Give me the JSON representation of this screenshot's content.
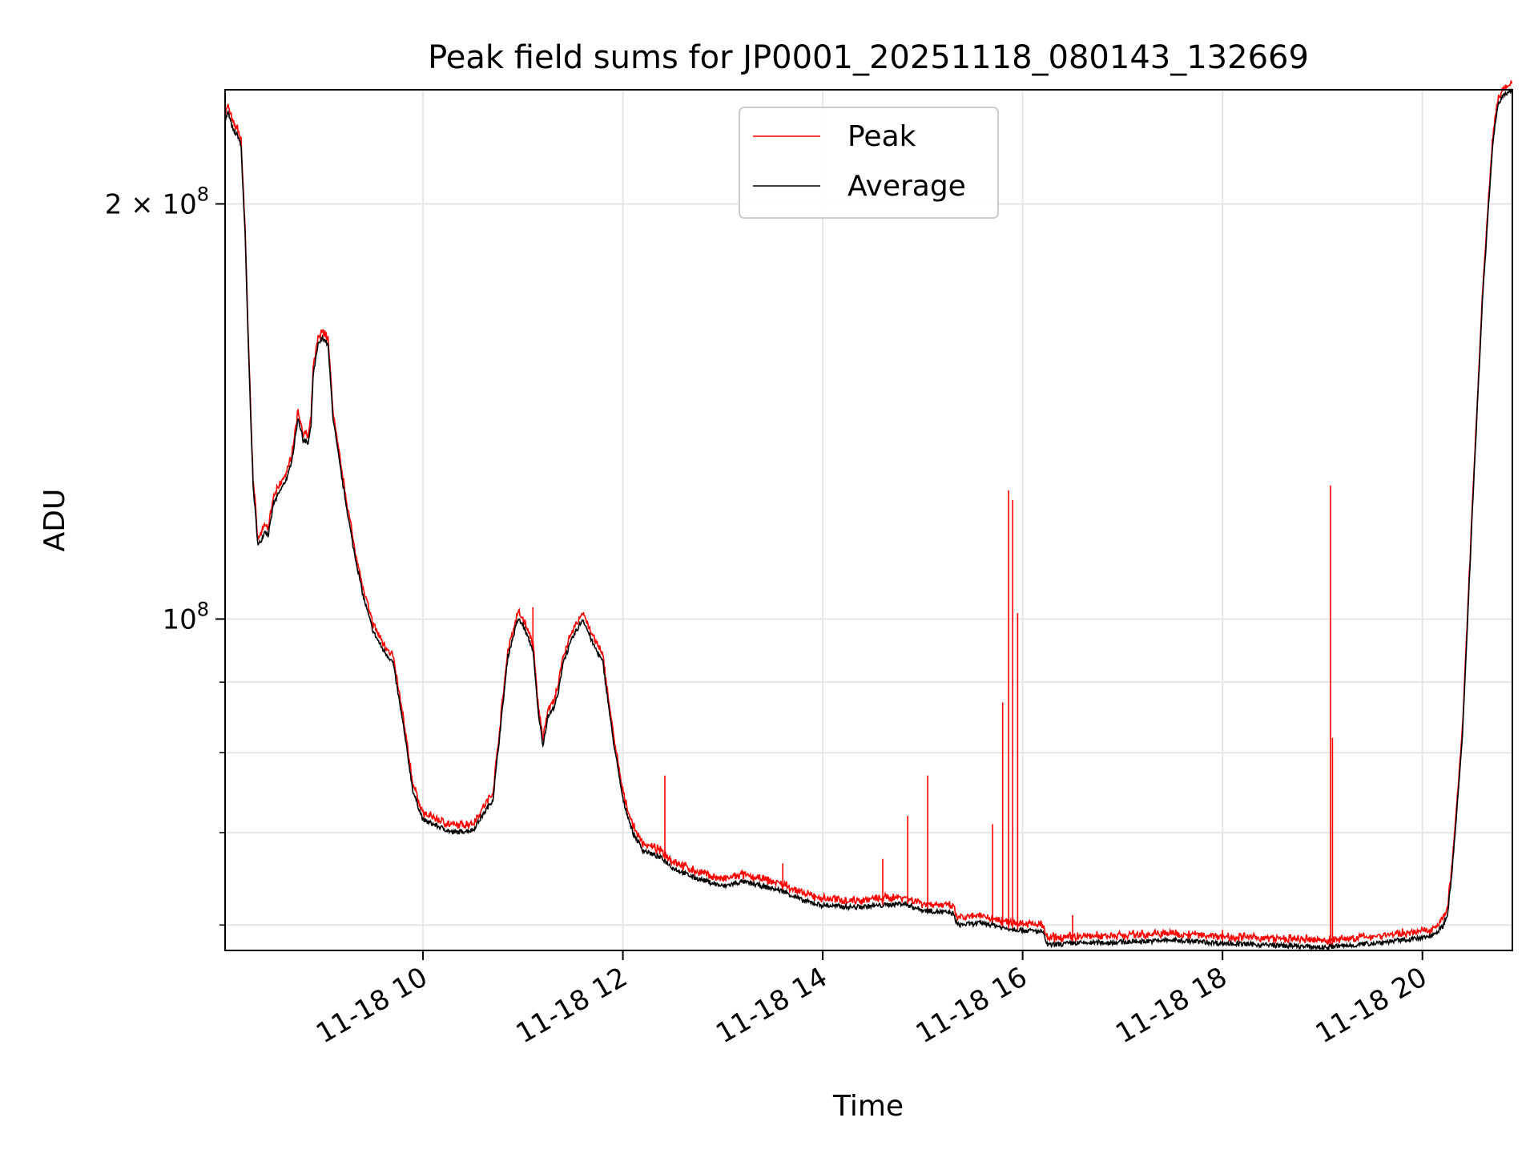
{
  "chart_data": {
    "type": "line",
    "title": "Peak field sums for JP0001_20251118_080143_132669",
    "xlabel": "Time",
    "ylabel": "ADU",
    "yscale": "log",
    "xlim": [
      8.02,
      20.9
    ],
    "ylim": [
      57500000,
      242000000
    ],
    "grid": true,
    "legend_position": "top-center",
    "x_ticks": [
      {
        "value": 10,
        "label": "11-18 10"
      },
      {
        "value": 12,
        "label": "11-18 12"
      },
      {
        "value": 14,
        "label": "11-18 14"
      },
      {
        "value": 16,
        "label": "11-18 16"
      },
      {
        "value": 18,
        "label": "11-18 18"
      },
      {
        "value": 20,
        "label": "11-18 20"
      }
    ],
    "y_ticks_major": [
      {
        "value": 100000000,
        "base": "10",
        "exp": "8",
        "coef": ""
      },
      {
        "value": 200000000,
        "base": "10",
        "exp": "8",
        "coef": "2 × "
      }
    ],
    "y_ticks_minor": [
      60000000,
      70000000,
      80000000,
      90000000
    ],
    "series": [
      {
        "name": "Peak",
        "color": "#ff0000",
        "spikes": [
          {
            "x": 11.1,
            "y": 102000000
          },
          {
            "x": 12.42,
            "y": 77000000
          },
          {
            "x": 13.6,
            "y": 66500000
          },
          {
            "x": 14.6,
            "y": 67000000
          },
          {
            "x": 14.85,
            "y": 72000000
          },
          {
            "x": 15.05,
            "y": 77000000
          },
          {
            "x": 15.7,
            "y": 71000000
          },
          {
            "x": 15.8,
            "y": 87000000
          },
          {
            "x": 15.86,
            "y": 124000000
          },
          {
            "x": 15.9,
            "y": 122000000
          },
          {
            "x": 15.95,
            "y": 101000000
          },
          {
            "x": 16.5,
            "y": 61000000
          },
          {
            "x": 18.0,
            "y": 59500000
          },
          {
            "x": 19.08,
            "y": 125000000
          },
          {
            "x": 19.1,
            "y": 82000000
          }
        ]
      },
      {
        "name": "Average",
        "color": "#000000",
        "x": [
          8.02,
          8.05,
          8.1,
          8.15,
          8.18,
          8.22,
          8.25,
          8.3,
          8.35,
          8.38,
          8.42,
          8.45,
          8.48,
          8.5,
          8.55,
          8.6,
          8.65,
          8.7,
          8.75,
          8.8,
          8.85,
          8.88,
          8.9,
          8.95,
          9.0,
          9.05,
          9.1,
          9.15,
          9.2,
          9.3,
          9.4,
          9.5,
          9.6,
          9.7,
          9.8,
          9.9,
          10.0,
          10.1,
          10.2,
          10.3,
          10.5,
          10.7,
          10.85,
          10.95,
          11.0,
          11.1,
          11.15,
          11.2,
          11.25,
          11.3,
          11.35,
          11.4,
          11.5,
          11.6,
          11.7,
          11.8,
          11.9,
          12.0,
          12.1,
          12.2,
          12.3,
          12.4,
          12.5,
          12.7,
          13.0,
          13.2,
          13.4,
          13.6,
          13.8,
          14.0,
          14.3,
          14.6,
          14.8,
          15.0,
          15.3,
          15.35,
          15.6,
          15.75,
          15.8,
          16.0,
          16.2,
          16.25,
          16.5,
          17.0,
          17.5,
          18.0,
          18.5,
          19.0,
          19.3,
          19.6,
          20.0,
          20.1,
          20.2,
          20.25,
          20.3,
          20.4,
          20.5,
          20.6,
          20.7,
          20.75,
          20.8,
          20.9
        ],
        "y": [
          230000000,
          233000000,
          226000000,
          224000000,
          220000000,
          190000000,
          160000000,
          125000000,
          113000000,
          114000000,
          116000000,
          115000000,
          118000000,
          121000000,
          123000000,
          125000000,
          127000000,
          132000000,
          140000000,
          135000000,
          134000000,
          138000000,
          150000000,
          158000000,
          160000000,
          158000000,
          140000000,
          132000000,
          125000000,
          113000000,
          104000000,
          98000000,
          95000000,
          93000000,
          84000000,
          75000000,
          71500000,
          71000000,
          70500000,
          70000000,
          70300000,
          74000000,
          94000000,
          100000000,
          99000000,
          95000000,
          86000000,
          81000000,
          85000000,
          86000000,
          88000000,
          93000000,
          97000000,
          100000000,
          96000000,
          93000000,
          82000000,
          74000000,
          70000000,
          68000000,
          67500000,
          67000000,
          66000000,
          65000000,
          64000000,
          64500000,
          64000000,
          63500000,
          62500000,
          62000000,
          61800000,
          62000000,
          62200000,
          61500000,
          61200000,
          60000000,
          60200000,
          59900000,
          59700000,
          59500000,
          59300000,
          58000000,
          58200000,
          58300000,
          58500000,
          58200000,
          58000000,
          57800000,
          58000000,
          58300000,
          58700000,
          59000000,
          59800000,
          61000000,
          66000000,
          82000000,
          120000000,
          170000000,
          220000000,
          235000000,
          240000000,
          242000000
        ]
      }
    ]
  }
}
